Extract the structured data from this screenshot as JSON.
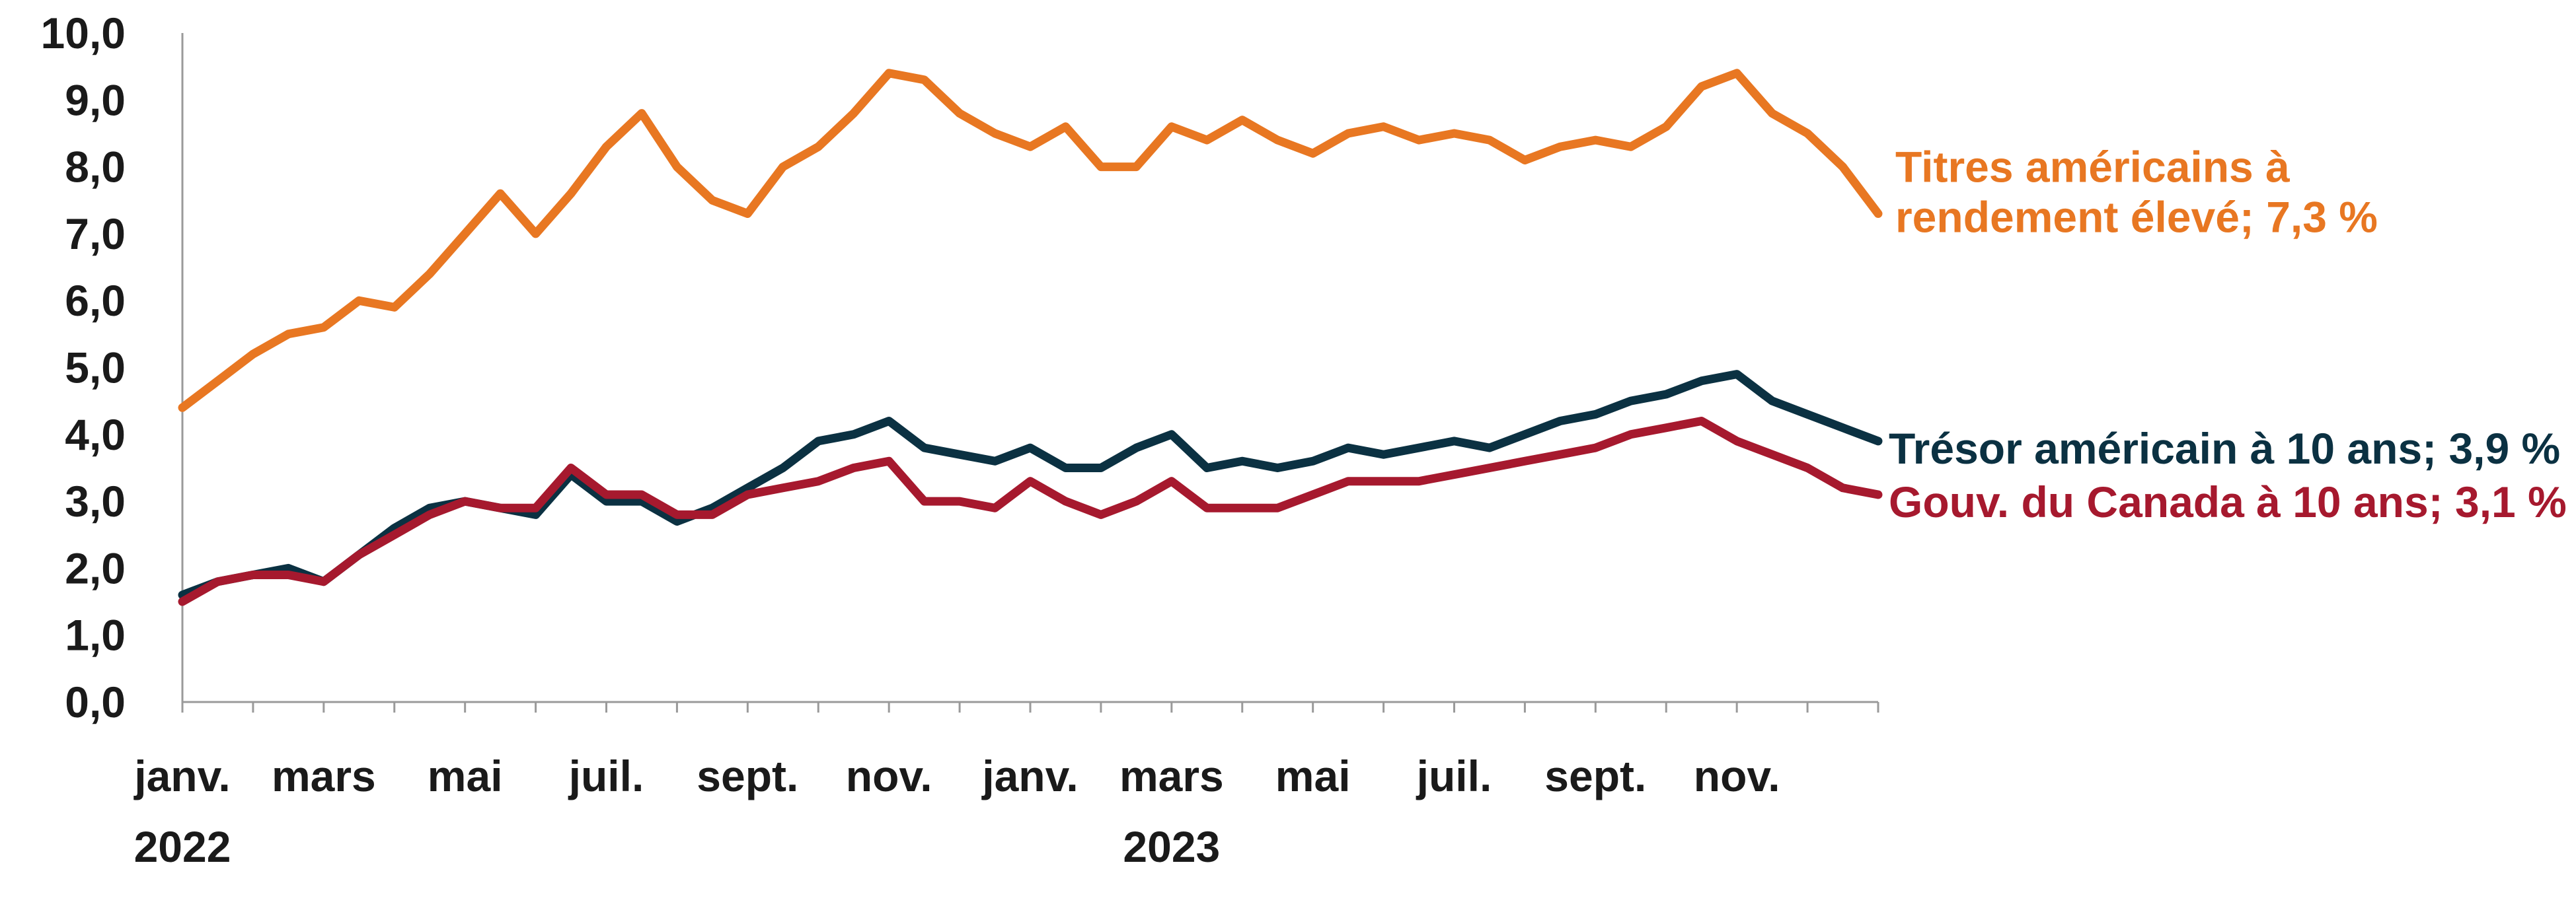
{
  "chart_data": {
    "type": "line",
    "title": "",
    "xlabel": "",
    "ylabel": "",
    "ylim": [
      0,
      10
    ],
    "yticks": [
      "0,0",
      "1,0",
      "2,0",
      "3,0",
      "4,0",
      "5,0",
      "6,0",
      "7,0",
      "8,0",
      "9,0",
      "10,0"
    ],
    "x_tick_labels": [
      "janv.",
      "mars",
      "mai",
      "juil.",
      "sept.",
      "nov.",
      "janv.",
      "mars",
      "mai",
      "juil.",
      "sept.",
      "nov."
    ],
    "year_labels": [
      {
        "label": "2022",
        "month_index": 0
      },
      {
        "label": "2023",
        "month_index": 14
      }
    ],
    "x_months": [
      0,
      0.5,
      1,
      1.5,
      2,
      2.5,
      3,
      3.5,
      4,
      4.5,
      5,
      5.5,
      6,
      6.5,
      7,
      7.5,
      8,
      8.5,
      9,
      9.5,
      10,
      10.5,
      11,
      11.5,
      12,
      12.5,
      13,
      13.5,
      14,
      14.5,
      15,
      15.5,
      16,
      16.5,
      17,
      17.5,
      18,
      18.5,
      19,
      19.5,
      20,
      20.5,
      21,
      21.5,
      22,
      22.5,
      23,
      23.5,
      24
    ],
    "grid": false,
    "legend": "direct labels at right",
    "series": [
      {
        "name": "Titres américains à rendement élevé",
        "label_lines": [
          "Titres américains à",
          "rendement élevé; 7,3 %"
        ],
        "color": "#E87722",
        "values": [
          4.4,
          4.8,
          5.2,
          5.5,
          5.6,
          6.0,
          5.9,
          6.4,
          7.0,
          7.6,
          7.0,
          7.6,
          8.3,
          8.8,
          8.0,
          7.5,
          7.3,
          8.0,
          8.3,
          8.8,
          9.4,
          9.3,
          8.8,
          8.5,
          8.3,
          8.6,
          8.0,
          8.0,
          8.6,
          8.4,
          8.7,
          8.4,
          8.2,
          8.5,
          8.6,
          8.4,
          8.5,
          8.4,
          8.1,
          8.3,
          8.4,
          8.3,
          8.6,
          9.2,
          9.4,
          8.8,
          8.5,
          8.0,
          7.3
        ]
      },
      {
        "name": "Trésor américain à 10 ans",
        "label_lines": [
          "Trésor américain à 10 ans; 3,9 %"
        ],
        "color": "#0B3142",
        "values": [
          1.6,
          1.8,
          1.9,
          2.0,
          1.8,
          2.2,
          2.6,
          2.9,
          3.0,
          2.9,
          2.8,
          3.4,
          3.0,
          3.0,
          2.7,
          2.9,
          3.2,
          3.5,
          3.9,
          4.0,
          4.2,
          3.8,
          3.7,
          3.6,
          3.8,
          3.5,
          3.5,
          3.8,
          4.0,
          3.5,
          3.6,
          3.5,
          3.6,
          3.8,
          3.7,
          3.8,
          3.9,
          3.8,
          4.0,
          4.2,
          4.3,
          4.5,
          4.6,
          4.8,
          4.9,
          4.5,
          4.3,
          4.1,
          3.9
        ]
      },
      {
        "name": "Gouv. du Canada à 10 ans",
        "label_lines": [
          "Gouv. du Canada à 10 ans; 3,1 %"
        ],
        "color": "#A6192E",
        "values": [
          1.5,
          1.8,
          1.9,
          1.9,
          1.8,
          2.2,
          2.5,
          2.8,
          3.0,
          2.9,
          2.9,
          3.5,
          3.1,
          3.1,
          2.8,
          2.8,
          3.1,
          3.2,
          3.3,
          3.5,
          3.6,
          3.0,
          3.0,
          2.9,
          3.3,
          3.0,
          2.8,
          3.0,
          3.3,
          2.9,
          2.9,
          2.9,
          3.1,
          3.3,
          3.3,
          3.3,
          3.4,
          3.5,
          3.6,
          3.7,
          3.8,
          4.0,
          4.1,
          4.2,
          3.9,
          3.7,
          3.5,
          3.2,
          3.1
        ]
      }
    ]
  }
}
